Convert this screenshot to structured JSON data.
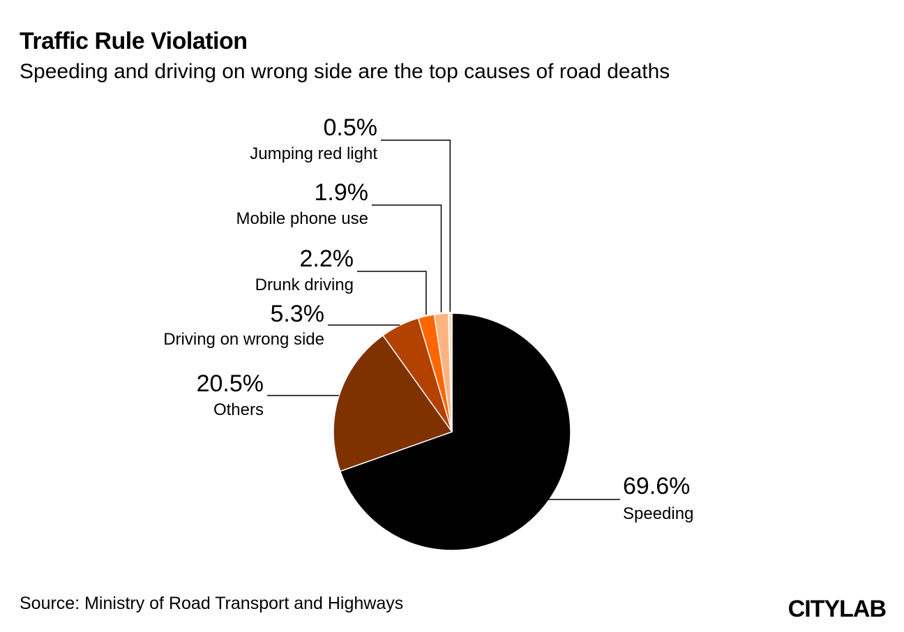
{
  "header": {
    "title": "Traffic Rule Violation",
    "subtitle": "Speeding and driving on wrong side are the top causes of road deaths"
  },
  "footer": {
    "source": "Source: Ministry of Road Transport and Highways",
    "logo": "CITYLAB"
  },
  "chart_data": {
    "type": "pie",
    "title": "Traffic Rule Violation",
    "subtitle": "Speeding and driving on wrong side are the top causes of road deaths",
    "slices": [
      {
        "label": "Speeding",
        "value": 69.6,
        "value_label": "69.6%",
        "color": "#000000"
      },
      {
        "label": "Others",
        "value": 20.5,
        "value_label": "20.5%",
        "color": "#7f3100"
      },
      {
        "label": "Driving on wrong side",
        "value": 5.3,
        "value_label": "5.3%",
        "color": "#b34100"
      },
      {
        "label": "Drunk driving",
        "value": 2.2,
        "value_label": "2.2%",
        "color": "#ff6600"
      },
      {
        "label": "Mobile phone use",
        "value": 1.9,
        "value_label": "1.9%",
        "color": "#ffb380"
      },
      {
        "label": "Jumping red light",
        "value": 0.5,
        "value_label": "0.5%",
        "color": "#ffd9bf"
      }
    ]
  }
}
